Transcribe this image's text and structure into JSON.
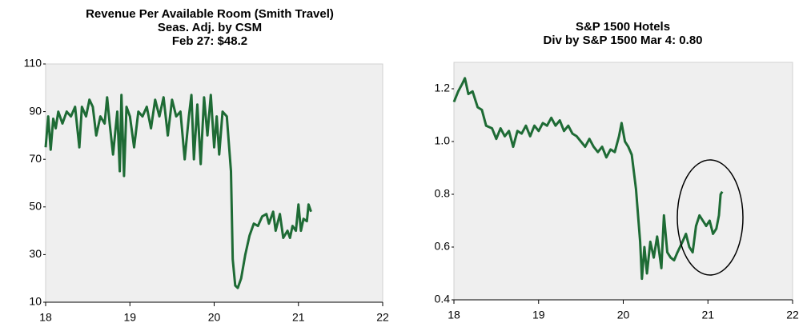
{
  "chart_data": [
    {
      "type": "line",
      "title": [
        "Revenue Per Available Room (Smith Travel)",
        "Seas. Adj. by CSM",
        "Feb 27: $48.2"
      ],
      "color": "#1e6b35",
      "xlim": [
        18,
        22
      ],
      "xticks": [
        18,
        19,
        20,
        21,
        22
      ],
      "ylim": [
        10,
        110
      ],
      "yticks": [
        10,
        30,
        50,
        70,
        90,
        110
      ],
      "x": [
        18.0,
        18.03,
        18.06,
        18.09,
        18.12,
        18.15,
        18.2,
        18.25,
        18.3,
        18.35,
        18.4,
        18.43,
        18.48,
        18.52,
        18.56,
        18.6,
        18.65,
        18.7,
        18.73,
        18.76,
        18.8,
        18.85,
        18.88,
        18.9,
        18.93,
        18.96,
        19.0,
        19.05,
        19.1,
        19.15,
        19.2,
        19.25,
        19.3,
        19.35,
        19.4,
        19.45,
        19.5,
        19.55,
        19.6,
        19.65,
        19.7,
        19.73,
        19.76,
        19.8,
        19.84,
        19.88,
        19.92,
        19.96,
        20.0,
        20.03,
        20.06,
        20.1,
        20.15,
        20.2,
        20.22,
        20.25,
        20.28,
        20.32,
        20.37,
        20.42,
        20.47,
        20.52,
        20.57,
        20.62,
        20.65,
        20.7,
        20.73,
        20.78,
        20.82,
        20.87,
        20.9,
        20.93,
        20.97,
        21.0,
        21.03,
        21.06,
        21.1,
        21.12,
        21.15
      ],
      "values": [
        75,
        88,
        74,
        87,
        83,
        90,
        85,
        90,
        88,
        92,
        75,
        92,
        88,
        95,
        92,
        80,
        88,
        85,
        96,
        85,
        72,
        90,
        65,
        97,
        63,
        92,
        88,
        75,
        90,
        88,
        92,
        83,
        95,
        88,
        96,
        80,
        95,
        88,
        90,
        70,
        88,
        97,
        70,
        93,
        68,
        96,
        80,
        97,
        75,
        88,
        72,
        90,
        88,
        65,
        28,
        17,
        16,
        20,
        30,
        38,
        43,
        42,
        46,
        47,
        43,
        48,
        40,
        47,
        37,
        40,
        37,
        42,
        40,
        51,
        40,
        45,
        44,
        51,
        48
      ]
    },
    {
      "type": "line",
      "title": [
        "S&P 1500 Hotels",
        "Div by S&P 1500  Mar 4: 0.80"
      ],
      "color": "#1e6b35",
      "xlim": [
        18,
        22
      ],
      "xticks": [
        18,
        19,
        20,
        21,
        22
      ],
      "ylim": [
        0.4,
        1.3
      ],
      "yticks": [
        0.4,
        0.6,
        0.8,
        {
          "value": 1,
          "label": "1.0"
        },
        1.2
      ],
      "x": [
        18.0,
        18.05,
        18.1,
        18.13,
        18.17,
        18.22,
        18.28,
        18.33,
        18.38,
        18.45,
        18.5,
        18.55,
        18.6,
        18.65,
        18.7,
        18.75,
        18.8,
        18.85,
        18.9,
        18.95,
        19.0,
        19.05,
        19.1,
        19.15,
        19.2,
        19.25,
        19.3,
        19.35,
        19.4,
        19.45,
        19.5,
        19.55,
        19.6,
        19.65,
        19.7,
        19.75,
        19.8,
        19.85,
        19.9,
        19.95,
        19.98,
        20.02,
        20.06,
        20.1,
        20.15,
        20.18,
        20.2,
        20.22,
        20.25,
        20.28,
        20.32,
        20.36,
        20.4,
        20.45,
        20.48,
        20.52,
        20.56,
        20.6,
        20.64,
        20.7,
        20.74,
        20.78,
        20.82,
        20.86,
        20.9,
        20.94,
        20.98,
        21.02,
        21.06,
        21.1,
        21.13,
        21.15,
        21.17
      ],
      "values": [
        1.15,
        1.19,
        1.22,
        1.24,
        1.18,
        1.19,
        1.13,
        1.12,
        1.06,
        1.05,
        1.01,
        1.05,
        1.02,
        1.04,
        0.98,
        1.04,
        1.03,
        1.06,
        1.02,
        1.06,
        1.04,
        1.07,
        1.06,
        1.09,
        1.06,
        1.08,
        1.04,
        1.06,
        1.03,
        1.02,
        1.0,
        0.98,
        1.01,
        0.98,
        0.96,
        0.98,
        0.94,
        0.97,
        0.96,
        1.02,
        1.07,
        1.0,
        0.98,
        0.95,
        0.82,
        0.7,
        0.62,
        0.48,
        0.6,
        0.5,
        0.62,
        0.56,
        0.64,
        0.52,
        0.72,
        0.58,
        0.56,
        0.55,
        0.58,
        0.62,
        0.65,
        0.6,
        0.58,
        0.68,
        0.72,
        0.7,
        0.68,
        0.7,
        0.65,
        0.67,
        0.72,
        0.8,
        0.81
      ]
    }
  ]
}
